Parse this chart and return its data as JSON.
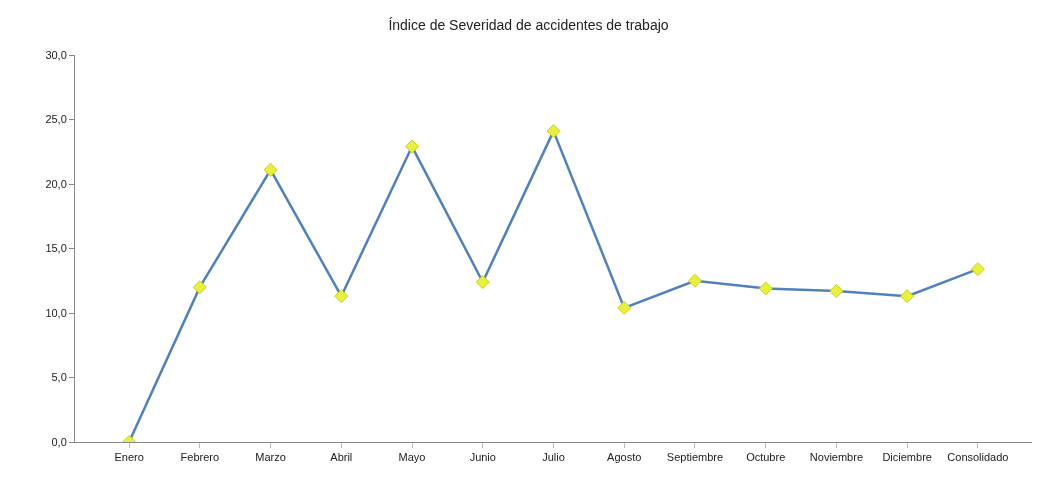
{
  "chart_data": {
    "type": "line",
    "title": "Índice de Severidad de accidentes de trabajo",
    "categories": [
      "Enero",
      "Febrero",
      "Marzo",
      "Abril",
      "Mayo",
      "Junio",
      "Julio",
      "Agosto",
      "Septiembre",
      "Octubre",
      "Noviembre",
      "Diciembre",
      "Consolidado"
    ],
    "series": [
      {
        "color": "#4f81bd",
        "values": [
          0.0,
          12.0,
          21.1,
          11.3,
          22.9,
          12.4,
          24.1,
          10.4,
          12.5,
          11.9,
          11.7,
          11.3,
          13.4
        ]
      }
    ],
    "ylim": [
      0,
      30
    ],
    "yticks": [
      {
        "value": 0,
        "label": "0,0"
      },
      {
        "value": 5,
        "label": "5,0"
      },
      {
        "value": 10,
        "label": "10,0"
      },
      {
        "value": 15,
        "label": "15,0"
      },
      {
        "value": 20,
        "label": "20,0"
      },
      {
        "value": 25,
        "label": "25,0"
      },
      {
        "value": 30,
        "label": "30,0"
      }
    ],
    "grid": false,
    "marker": "diamond",
    "line_style": "solid"
  }
}
